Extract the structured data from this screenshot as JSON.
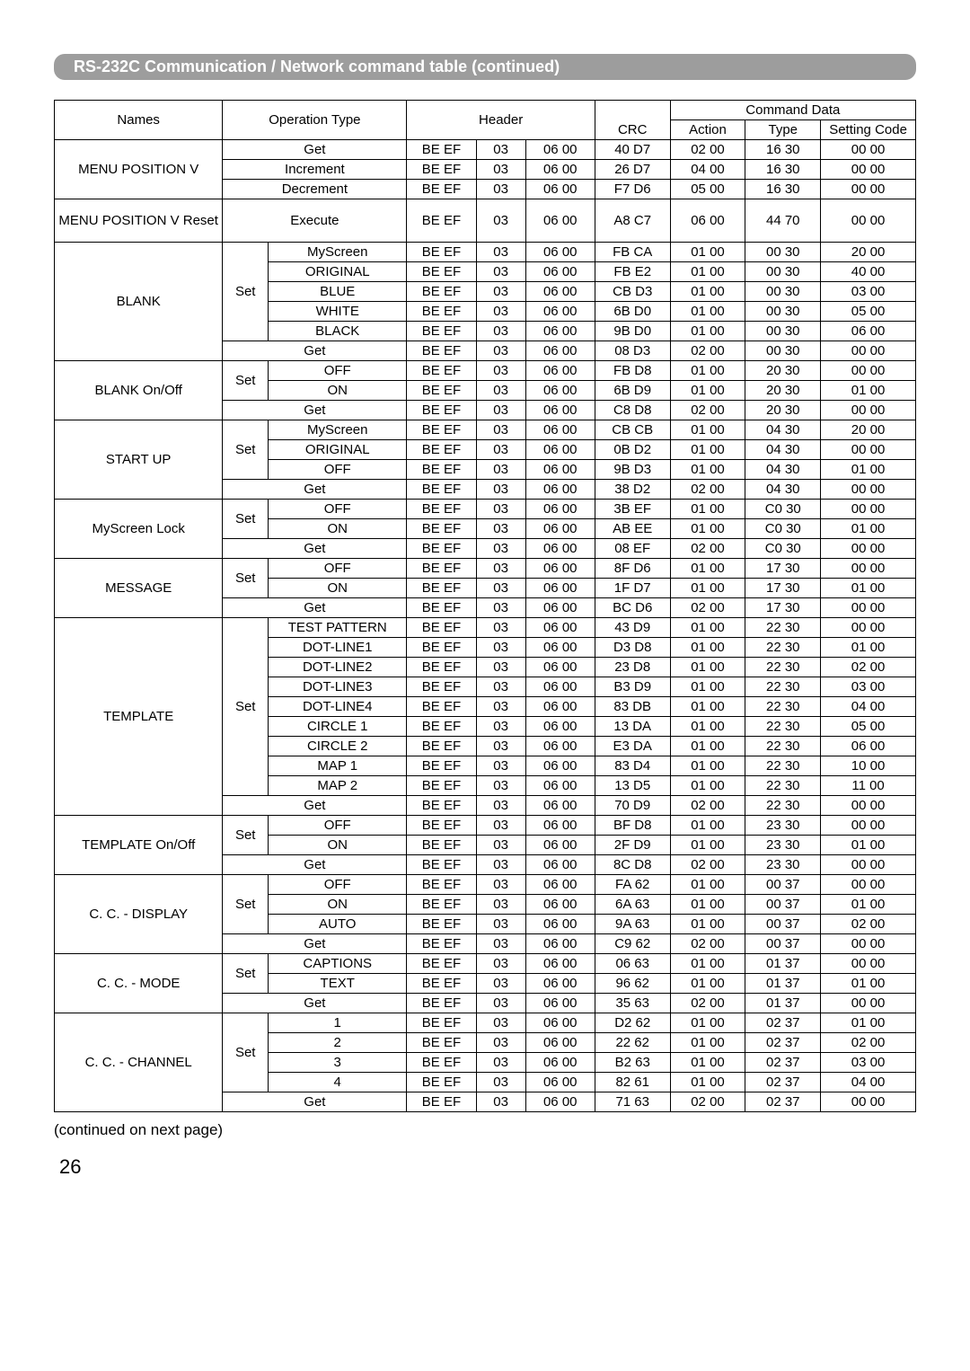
{
  "title": "RS-232C Communication / Network command table (continued)",
  "headers": {
    "names": "Names",
    "operation_type": "Operation Type",
    "header": "Header",
    "crc": "CRC",
    "command_data": "Command Data",
    "action": "Action",
    "type": "Type",
    "setting_code": "Setting Code"
  },
  "continued": "(continued on next page)",
  "page_number": "26",
  "groups": [
    {
      "name": "MENU POSITION V",
      "rows": [
        {
          "op1": null,
          "op2": "Get",
          "span": true,
          "h": [
            "BE  EF",
            "03",
            "06  00"
          ],
          "crc": "40  D7",
          "act": "02  00",
          "typ": "16  30",
          "set": "00  00"
        },
        {
          "op1": null,
          "op2": "Increment",
          "span": true,
          "h": [
            "BE  EF",
            "03",
            "06  00"
          ],
          "crc": "26  D7",
          "act": "04  00",
          "typ": "16  30",
          "set": "00  00"
        },
        {
          "op1": null,
          "op2": "Decrement",
          "span": true,
          "h": [
            "BE  EF",
            "03",
            "06  00"
          ],
          "crc": "F7  D6",
          "act": "05  00",
          "typ": "16  30",
          "set": "00  00"
        }
      ]
    },
    {
      "name": "MENU POSITION V Reset",
      "tall": true,
      "rows": [
        {
          "op1": null,
          "op2": "Execute",
          "span": true,
          "h": [
            "BE  EF",
            "03",
            "06  00"
          ],
          "crc": "A8  C7",
          "act": "06  00",
          "typ": "44  70",
          "set": "00  00"
        }
      ]
    },
    {
      "name": "BLANK",
      "rows": [
        {
          "op1": "Set",
          "op1span": 5,
          "op2": "MyScreen",
          "h": [
            "BE  EF",
            "03",
            "06  00"
          ],
          "crc": "FB  CA",
          "act": "01  00",
          "typ": "00  30",
          "set": "20  00"
        },
        {
          "op2": "ORIGINAL",
          "h": [
            "BE  EF",
            "03",
            "06  00"
          ],
          "crc": "FB  E2",
          "act": "01  00",
          "typ": "00  30",
          "set": "40  00"
        },
        {
          "op2": "BLUE",
          "h": [
            "BE  EF",
            "03",
            "06  00"
          ],
          "crc": "CB  D3",
          "act": "01  00",
          "typ": "00  30",
          "set": "03  00"
        },
        {
          "op2": "WHITE",
          "h": [
            "BE  EF",
            "03",
            "06  00"
          ],
          "crc": "6B  D0",
          "act": "01  00",
          "typ": "00  30",
          "set": "05  00"
        },
        {
          "op2": "BLACK",
          "h": [
            "BE  EF",
            "03",
            "06  00"
          ],
          "crc": "9B  D0",
          "act": "01  00",
          "typ": "00  30",
          "set": "06  00"
        },
        {
          "op1": null,
          "op2": "Get",
          "span": true,
          "h": [
            "BE  EF",
            "03",
            "06  00"
          ],
          "crc": "08  D3",
          "act": "02  00",
          "typ": "00  30",
          "set": "00  00"
        }
      ]
    },
    {
      "name": "BLANK On/Off",
      "rows": [
        {
          "op1": "Set",
          "op1span": 2,
          "op2": "OFF",
          "h": [
            "BE  EF",
            "03",
            "06  00"
          ],
          "crc": "FB  D8",
          "act": "01  00",
          "typ": "20  30",
          "set": "00  00"
        },
        {
          "op2": "ON",
          "h": [
            "BE  EF",
            "03",
            "06  00"
          ],
          "crc": "6B  D9",
          "act": "01  00",
          "typ": "20  30",
          "set": "01  00"
        },
        {
          "op1": null,
          "op2": "Get",
          "span": true,
          "h": [
            "BE  EF",
            "03",
            "06  00"
          ],
          "crc": "C8  D8",
          "act": "02  00",
          "typ": "20  30",
          "set": "00  00"
        }
      ]
    },
    {
      "name": "START UP",
      "rows": [
        {
          "op1": "Set",
          "op1span": 3,
          "op2": "MyScreen",
          "h": [
            "BE  EF",
            "03",
            "06  00"
          ],
          "crc": "CB  CB",
          "act": "01  00",
          "typ": "04  30",
          "set": "20  00"
        },
        {
          "op2": "ORIGINAL",
          "h": [
            "BE  EF",
            "03",
            "06  00"
          ],
          "crc": "0B  D2",
          "act": "01  00",
          "typ": "04  30",
          "set": "00  00"
        },
        {
          "op2": "OFF",
          "h": [
            "BE  EF",
            "03",
            "06  00"
          ],
          "crc": "9B  D3",
          "act": "01  00",
          "typ": "04  30",
          "set": "01  00"
        },
        {
          "op1": null,
          "op2": "Get",
          "span": true,
          "h": [
            "BE  EF",
            "03",
            "06  00"
          ],
          "crc": "38  D2",
          "act": "02  00",
          "typ": "04  30",
          "set": "00  00"
        }
      ]
    },
    {
      "name": "MyScreen Lock",
      "rows": [
        {
          "op1": "Set",
          "op1span": 2,
          "op2": "OFF",
          "h": [
            "BE  EF",
            "03",
            "06  00"
          ],
          "crc": "3B  EF",
          "act": "01  00",
          "typ": "C0  30",
          "set": "00  00"
        },
        {
          "op2": "ON",
          "h": [
            "BE  EF",
            "03",
            "06  00"
          ],
          "crc": "AB  EE",
          "act": "01  00",
          "typ": "C0  30",
          "set": "01  00"
        },
        {
          "op1": null,
          "op2": "Get",
          "span": true,
          "h": [
            "BE  EF",
            "03",
            "06  00"
          ],
          "crc": "08  EF",
          "act": "02  00",
          "typ": "C0  30",
          "set": "00  00"
        }
      ]
    },
    {
      "name": "MESSAGE",
      "rows": [
        {
          "op1": "Set",
          "op1span": 2,
          "op2": "OFF",
          "h": [
            "BE  EF",
            "03",
            "06  00"
          ],
          "crc": "8F  D6",
          "act": "01  00",
          "typ": "17  30",
          "set": "00  00"
        },
        {
          "op2": "ON",
          "h": [
            "BE  EF",
            "03",
            "06  00"
          ],
          "crc": "1F  D7",
          "act": "01  00",
          "typ": "17  30",
          "set": "01  00"
        },
        {
          "op1": null,
          "op2": "Get",
          "span": true,
          "h": [
            "BE  EF",
            "03",
            "06  00"
          ],
          "crc": "BC  D6",
          "act": "02  00",
          "typ": "17  30",
          "set": "00  00"
        }
      ]
    },
    {
      "name": "TEMPLATE",
      "rows": [
        {
          "op1": "Set",
          "op1span": 9,
          "op2": "TEST PATTERN",
          "h": [
            "BE  EF",
            "03",
            "06  00"
          ],
          "crc": "43  D9",
          "act": "01  00",
          "typ": "22  30",
          "set": "00  00"
        },
        {
          "op2": "DOT-LINE1",
          "h": [
            "BE  EF",
            "03",
            "06  00"
          ],
          "crc": "D3  D8",
          "act": "01  00",
          "typ": "22  30",
          "set": "01  00"
        },
        {
          "op2": "DOT-LINE2",
          "h": [
            "BE  EF",
            "03",
            "06  00"
          ],
          "crc": "23  D8",
          "act": "01  00",
          "typ": "22  30",
          "set": "02  00"
        },
        {
          "op2": "DOT-LINE3",
          "h": [
            "BE  EF",
            "03",
            "06  00"
          ],
          "crc": "B3  D9",
          "act": "01  00",
          "typ": "22  30",
          "set": "03  00"
        },
        {
          "op2": "DOT-LINE4",
          "h": [
            "BE  EF",
            "03",
            "06  00"
          ],
          "crc": "83  DB",
          "act": "01  00",
          "typ": "22  30",
          "set": "04  00"
        },
        {
          "op2": "CIRCLE 1",
          "h": [
            "BE  EF",
            "03",
            "06  00"
          ],
          "crc": "13  DA",
          "act": "01  00",
          "typ": "22  30",
          "set": "05  00"
        },
        {
          "op2": "CIRCLE 2",
          "h": [
            "BE  EF",
            "03",
            "06  00"
          ],
          "crc": "E3  DA",
          "act": "01  00",
          "typ": "22  30",
          "set": "06  00"
        },
        {
          "op2": "MAP 1",
          "h": [
            "BE EF",
            "03",
            "06  00"
          ],
          "crc": "83  D4",
          "act": "01  00",
          "typ": "22  30",
          "set": "10  00"
        },
        {
          "op2": "MAP 2",
          "h": [
            "BE EF",
            "03",
            "06  00"
          ],
          "crc": "13  D5",
          "act": "01  00",
          "typ": "22  30",
          "set": "11  00"
        },
        {
          "op1": null,
          "op2": "Get",
          "span": true,
          "h": [
            "BE  EF",
            "03",
            "06  00"
          ],
          "crc": "70  D9",
          "act": "02  00",
          "typ": "22  30",
          "set": "00  00"
        }
      ]
    },
    {
      "name": "TEMPLATE On/Off",
      "rows": [
        {
          "op1": "Set",
          "op1span": 2,
          "op2": "OFF",
          "h": [
            "BE  EF",
            "03",
            "06  00"
          ],
          "crc": "BF  D8",
          "act": "01  00",
          "typ": "23  30",
          "set": "00  00"
        },
        {
          "op2": "ON",
          "h": [
            "BE  EF",
            "03",
            "06  00"
          ],
          "crc": "2F  D9",
          "act": "01  00",
          "typ": "23  30",
          "set": "01  00"
        },
        {
          "op1": null,
          "op2": "Get",
          "span": true,
          "h": [
            "BE  EF",
            "03",
            "06  00"
          ],
          "crc": "8C  D8",
          "act": "02  00",
          "typ": "23  30",
          "set": "00  00"
        }
      ]
    },
    {
      "name": "C. C. - DISPLAY",
      "rows": [
        {
          "op1": "Set",
          "op1span": 3,
          "op2": "OFF",
          "h": [
            "BE  EF",
            "03",
            "06  00"
          ],
          "crc": "FA  62",
          "act": "01  00",
          "typ": "00  37",
          "set": "00  00"
        },
        {
          "op2": "ON",
          "h": [
            "BE  EF",
            "03",
            "06  00"
          ],
          "crc": "6A  63",
          "act": "01  00",
          "typ": "00  37",
          "set": "01  00"
        },
        {
          "op2": "AUTO",
          "h": [
            "BE  EF",
            "03",
            "06  00"
          ],
          "crc": "9A  63",
          "act": "01  00",
          "typ": "00  37",
          "set": "02  00"
        },
        {
          "op1": null,
          "op2": "Get",
          "span": true,
          "h": [
            "BE  EF",
            "03",
            "06  00"
          ],
          "crc": "C9  62",
          "act": "02  00",
          "typ": "00  37",
          "set": "00  00"
        }
      ]
    },
    {
      "name": "C. C. - MODE",
      "rows": [
        {
          "op1": "Set",
          "op1span": 2,
          "op2": "CAPTIONS",
          "h": [
            "BE  EF",
            "03",
            "06  00"
          ],
          "crc": "06  63",
          "act": "01  00",
          "typ": "01  37",
          "set": "00  00"
        },
        {
          "op2": "TEXT",
          "h": [
            "BE  EF",
            "03",
            "06  00"
          ],
          "crc": "96  62",
          "act": "01  00",
          "typ": "01  37",
          "set": "01  00"
        },
        {
          "op1": null,
          "op2": "Get",
          "span": true,
          "h": [
            "BE  EF",
            "03",
            "06  00"
          ],
          "crc": "35  63",
          "act": "02  00",
          "typ": "01  37",
          "set": "00  00"
        }
      ]
    },
    {
      "name": "C. C. - CHANNEL",
      "rows": [
        {
          "op1": "Set",
          "op1span": 4,
          "op2": "1",
          "h": [
            "BE  EF",
            "03",
            "06  00"
          ],
          "crc": "D2  62",
          "act": "01  00",
          "typ": "02  37",
          "set": "01  00"
        },
        {
          "op2": "2",
          "h": [
            "BE  EF",
            "03",
            "06  00"
          ],
          "crc": "22  62",
          "act": "01  00",
          "typ": "02  37",
          "set": "02  00"
        },
        {
          "op2": "3",
          "h": [
            "BE  EF",
            "03",
            "06  00"
          ],
          "crc": "B2  63",
          "act": "01  00",
          "typ": "02  37",
          "set": "03  00"
        },
        {
          "op2": "4",
          "h": [
            "BE  EF",
            "03",
            "06  00"
          ],
          "crc": "82  61",
          "act": "01  00",
          "typ": "02  37",
          "set": "04  00"
        },
        {
          "op1": null,
          "op2": "Get",
          "span": true,
          "h": [
            "BE  EF",
            "03",
            "06  00"
          ],
          "crc": "71  63",
          "act": "02  00",
          "typ": "02  37",
          "set": "00  00"
        }
      ]
    }
  ]
}
